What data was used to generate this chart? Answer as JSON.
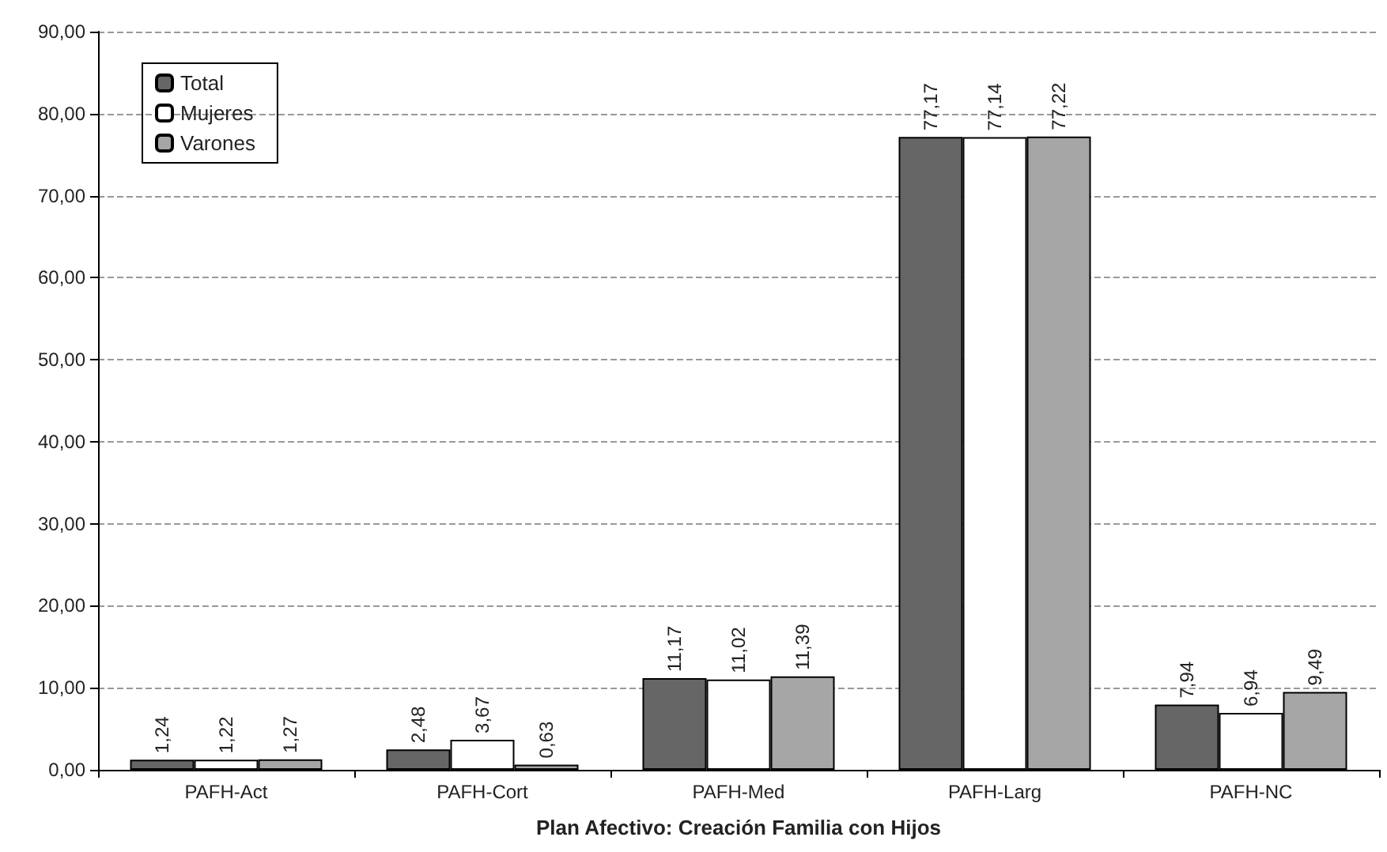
{
  "chart_data": {
    "type": "bar",
    "xlabel": "Plan Afectivo: Creación Familia con Hijos",
    "categories": [
      "PAFH-Act",
      "PAFH-Cort",
      "PAFH-Med",
      "PAFH-Larg",
      "PAFH-NC"
    ],
    "series": [
      {
        "name": "Total",
        "color": "#666666",
        "values": [
          1.24,
          2.48,
          11.17,
          77.17,
          7.94
        ],
        "value_labels": [
          "1,24",
          "2,48",
          "11,17",
          "77,17",
          "7,94"
        ]
      },
      {
        "name": "Mujeres",
        "color": "#ffffff",
        "values": [
          1.22,
          3.67,
          11.02,
          77.14,
          6.94
        ],
        "value_labels": [
          "1,22",
          "3,67",
          "11,02",
          "77,14",
          "6,94"
        ]
      },
      {
        "name": "Varones",
        "color": "#a6a6a6",
        "values": [
          1.27,
          0.63,
          11.39,
          77.22,
          9.49
        ],
        "value_labels": [
          "1,27",
          "0,63",
          "11,39",
          "77,22",
          "9,49"
        ]
      }
    ],
    "ylim": [
      0,
      90
    ],
    "yticks": [
      {
        "value": 0,
        "label": "0,00"
      },
      {
        "value": 10,
        "label": "10,00"
      },
      {
        "value": 20,
        "label": "20,00"
      },
      {
        "value": 30,
        "label": "30,00"
      },
      {
        "value": 40,
        "label": "40,00"
      },
      {
        "value": 50,
        "label": "50,00"
      },
      {
        "value": 60,
        "label": "60,00"
      },
      {
        "value": 70,
        "label": "70,00"
      },
      {
        "value": 80,
        "label": "80,00"
      },
      {
        "value": 90,
        "label": "90,00"
      }
    ],
    "grid": "y",
    "legend": "top left"
  }
}
